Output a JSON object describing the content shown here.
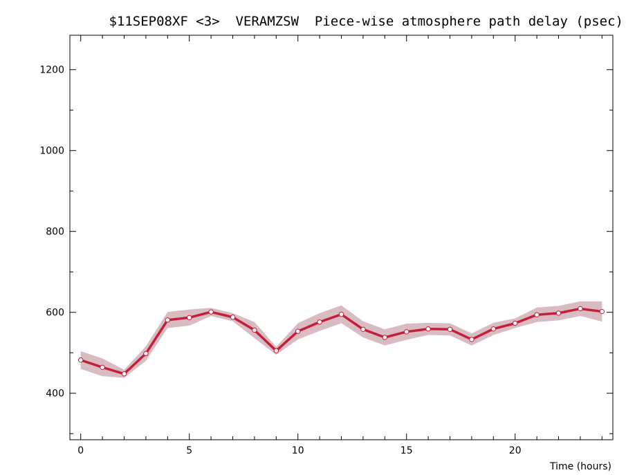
{
  "chart_data": {
    "type": "line",
    "title": "$11SEP08XF <3>  VERAMZSW  Piece-wise atmosphere path delay (psec)",
    "xlabel": "Time (hours)",
    "ylabel": "",
    "xlim": [
      -0.5,
      24.5
    ],
    "ylim": [
      285,
      1285
    ],
    "x_ticks": [
      0,
      5,
      10,
      15,
      20
    ],
    "y_ticks": [
      400,
      600,
      800,
      1000,
      1200
    ],
    "x_minor_step": 1,
    "y_minor_step": 100,
    "grid": false,
    "legend": "none",
    "series": [
      {
        "x": [
          0,
          1,
          2,
          3,
          4,
          5,
          6,
          7,
          8,
          9,
          10,
          11,
          12,
          13,
          14,
          15,
          16,
          17,
          18,
          19,
          20,
          21,
          22,
          23,
          24
        ],
        "values": [
          482,
          464,
          448,
          498,
          581,
          587,
          601,
          588,
          556,
          505,
          553,
          576,
          595,
          558,
          538,
          552,
          559,
          558,
          533,
          559,
          573,
          594,
          598,
          609,
          602
        ],
        "uncertainty": [
          22,
          22,
          10,
          18,
          20,
          20,
          10,
          10,
          20,
          10,
          20,
          22,
          22,
          20,
          20,
          20,
          15,
          15,
          15,
          15,
          12,
          18,
          18,
          18,
          25
        ]
      }
    ],
    "colors": {
      "line": "#c41e3a",
      "band": "#d9bcc2",
      "marker_fill": "#ffffff",
      "axes": "#000000"
    }
  }
}
